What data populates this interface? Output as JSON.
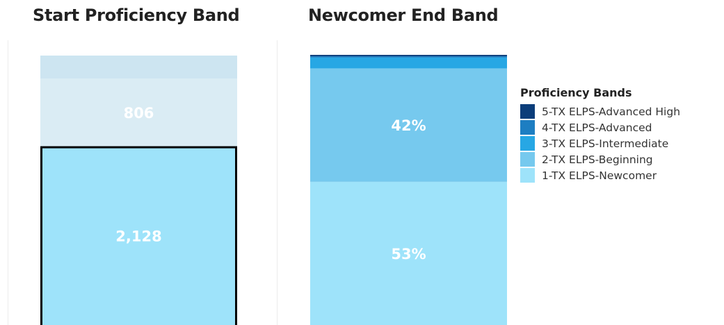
{
  "colors": {
    "band5": "#0b3d7a",
    "band4": "#1d7ec2",
    "band3": "#27a7e4",
    "band2": "#76c9ee",
    "band1": "#9ee3fa",
    "faded_top": "#cde5f1",
    "faded_mid": "#daecf4",
    "label_on_band": "#ffffff",
    "highlight_border": "#000000"
  },
  "legend": {
    "title": "Proficiency Bands",
    "items": [
      {
        "label": "5-TX ELPS-Advanced High",
        "color": "#0b3d7a"
      },
      {
        "label": "4-TX ELPS-Advanced",
        "color": "#1d7ec2"
      },
      {
        "label": "3-TX ELPS-Intermediate",
        "color": "#27a7e4"
      },
      {
        "label": "2-TX ELPS-Beginning",
        "color": "#76c9ee"
      },
      {
        "label": "1-TX ELPS-Newcomer",
        "color": "#9ee3fa"
      }
    ]
  },
  "chart_data": [
    {
      "type": "bar",
      "stacked": true,
      "title": "Start Proficiency Band",
      "highlighted_series": "1-TX ELPS-Newcomer",
      "series": [
        {
          "name": "1-TX ELPS-Newcomer",
          "value": 2128,
          "label": "2,128",
          "color": "#9ee3fa"
        },
        {
          "name": "2-TX ELPS-Beginning",
          "value": 806,
          "label": "806",
          "color": "#daecf4"
        },
        {
          "name": "3-TX ELPS-Intermediate",
          "value": 273,
          "label": "",
          "color": "#cde5f1"
        }
      ]
    },
    {
      "type": "bar",
      "stacked": true,
      "title": "Newcomer End Band",
      "series": [
        {
          "name": "1-TX ELPS-Newcomer",
          "value": 53,
          "label": "53%",
          "color": "#9ee3fa"
        },
        {
          "name": "2-TX ELPS-Beginning",
          "value": 42,
          "label": "42%",
          "color": "#76c9ee"
        },
        {
          "name": "3-TX ELPS-Intermediate",
          "value": 4,
          "label": "",
          "color": "#27a7e4"
        },
        {
          "name": "4-TX ELPS-Advanced",
          "value": 0.5,
          "label": "",
          "color": "#1d7ec2"
        },
        {
          "name": "5-TX ELPS-Advanced High",
          "value": 0.5,
          "label": "",
          "color": "#0b3d7a"
        }
      ]
    }
  ]
}
